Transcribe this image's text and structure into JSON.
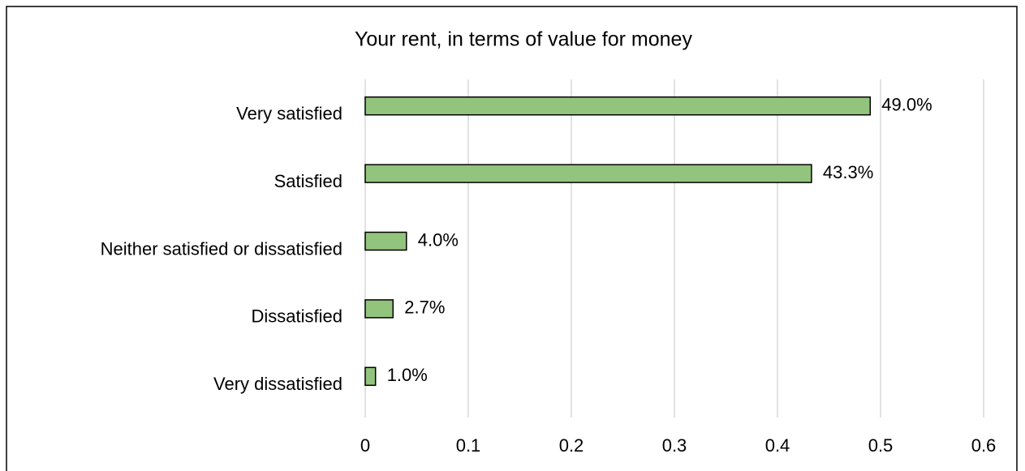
{
  "chart_data": {
    "type": "bar",
    "orientation": "horizontal",
    "title": "Your rent, in terms of value for money",
    "categories": [
      "Very satisfied",
      "Satisfied",
      "Neither satisfied or dissatisfied",
      "Dissatisfied",
      "Very dissatisfied"
    ],
    "values": [
      0.49,
      0.433,
      0.04,
      0.027,
      0.01
    ],
    "value_labels": [
      "49.0%",
      "43.3%",
      "4.0%",
      "2.7%",
      "1.0%"
    ],
    "color": "#93c47d",
    "xlim": [
      0,
      0.6
    ],
    "xticks": [
      0,
      0.1,
      0.2,
      0.3,
      0.4,
      0.5,
      0.6
    ],
    "grid": true
  }
}
